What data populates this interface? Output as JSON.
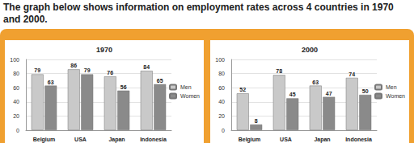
{
  "heading": "The graph below shows information on employment rates across 4 countries in 1970 and 2000.",
  "chart_data": [
    {
      "type": "bar",
      "title": "1970",
      "categories": [
        "Belgium",
        "USA",
        "Japan",
        "Indonesia"
      ],
      "series": [
        {
          "name": "Men",
          "color": "#c9c9c9",
          "values": [
            79,
            86,
            76,
            84
          ]
        },
        {
          "name": "Women",
          "color": "#8a8a8a",
          "values": [
            63,
            79,
            56,
            65
          ]
        }
      ],
      "ylim": [
        0,
        100
      ],
      "yticks": [
        0,
        20,
        40,
        60,
        80,
        100
      ],
      "grid": true,
      "legend": "right",
      "data_labels": true
    },
    {
      "type": "bar",
      "title": "2000",
      "categories": [
        "Belgium",
        "USA",
        "Japan",
        "Indonesia"
      ],
      "series": [
        {
          "name": "Men",
          "color": "#c9c9c9",
          "values": [
            52,
            78,
            63,
            74
          ]
        },
        {
          "name": "Women",
          "color": "#8a8a8a",
          "values": [
            8,
            45,
            47,
            50
          ]
        }
      ],
      "ylim": [
        0,
        100
      ],
      "yticks": [
        0,
        20,
        40,
        60,
        80,
        100
      ],
      "grid": true,
      "legend": "right",
      "data_labels": true
    }
  ]
}
